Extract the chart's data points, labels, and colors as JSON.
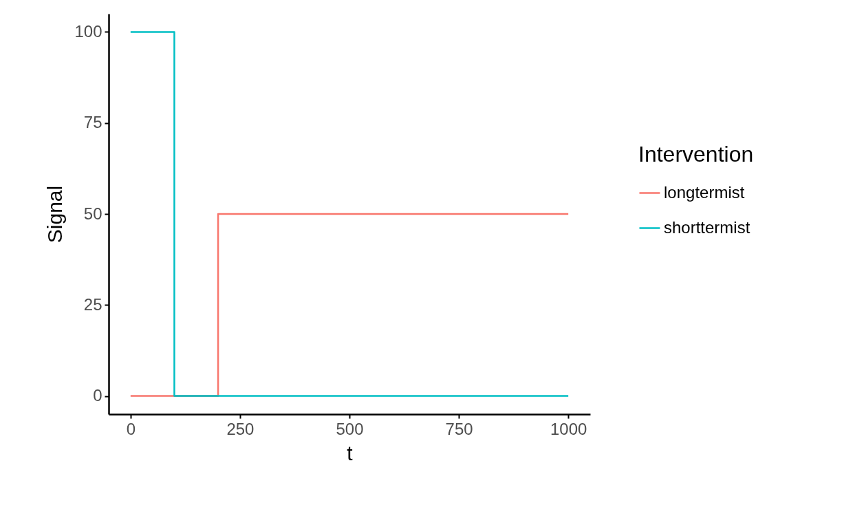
{
  "chart_data": {
    "type": "step",
    "xlabel": "t",
    "ylabel": "Signal",
    "legend_title": "Intervention",
    "legend": "right",
    "xlim": [
      -50,
      1050
    ],
    "xticks": [
      0,
      250,
      500,
      750,
      1000
    ],
    "ylim": [
      -5,
      105
    ],
    "yticks": [
      0,
      25,
      50,
      75,
      100
    ],
    "series": [
      {
        "name": "longtermist",
        "color": "#f8766d",
        "x": [
          0,
          200,
          1000
        ],
        "values": [
          0,
          50,
          50
        ]
      },
      {
        "name": "shorttermist",
        "color": "#00bfc4",
        "x": [
          0,
          100,
          1000
        ],
        "values": [
          100,
          0,
          0
        ]
      }
    ]
  }
}
